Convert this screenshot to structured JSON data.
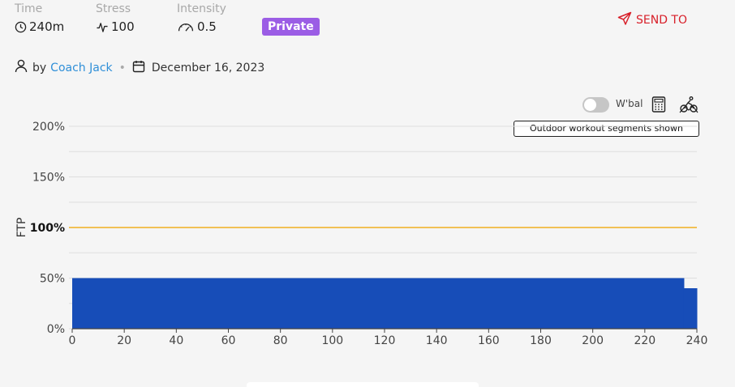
{
  "stats": {
    "time": {
      "label": "Time",
      "value": "240m",
      "icon": "clock-icon"
    },
    "stress": {
      "label": "Stress",
      "value": "100",
      "icon": "pulse-icon"
    },
    "intensity": {
      "label": "Intensity",
      "value": "0.5",
      "icon": "gauge-icon"
    }
  },
  "badge": "Private",
  "send_to": "SEND TO",
  "meta": {
    "by_label": "by",
    "author": "Coach Jack",
    "separator": "•",
    "date": "December 16, 2023"
  },
  "toolbar": {
    "wbal_label": "W'bal",
    "tooltip": "Outdoor workout segments shown"
  },
  "colors": {
    "bar": "#174db8",
    "ftp_line": "#f0b020",
    "badge": "#9b5de5",
    "send": "#d8202a",
    "link": "#2f8fd8"
  },
  "chart_data": {
    "type": "area",
    "ylabel": "FTP",
    "x_ticks": [
      "0",
      "20",
      "40",
      "60",
      "80",
      "100",
      "120",
      "140",
      "160",
      "180",
      "200",
      "220",
      "240"
    ],
    "y_ticks": [
      "0%",
      "50%",
      "100%",
      "150%",
      "200%"
    ],
    "xlim": [
      0,
      240
    ],
    "ylim": [
      0,
      200
    ],
    "reference_line": {
      "value": 100,
      "label": "100%"
    },
    "segments": [
      {
        "start": 0,
        "end": 235,
        "power": 50
      },
      {
        "start": 235,
        "end": 240,
        "power": 40
      }
    ],
    "grid": true
  }
}
